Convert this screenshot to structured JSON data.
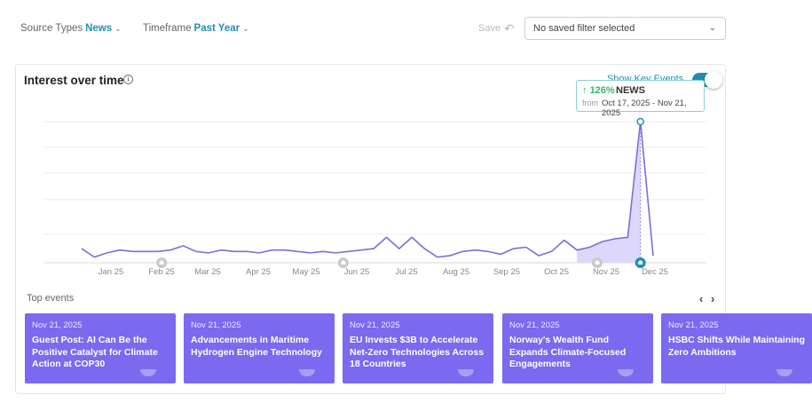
{
  "filters": {
    "source_types": {
      "label": "Source Types",
      "value": "News"
    },
    "timeframe": {
      "label": "Timeframe",
      "value": "Past Year"
    },
    "save_label": "Save",
    "saved_filter": "No saved filter selected"
  },
  "panel": {
    "title": "Interest over time",
    "key_events_label": "Show Key Events",
    "key_events_on": true
  },
  "tooltip": {
    "change": "126%",
    "source": "NEWS",
    "from_label": "from",
    "range": "Oct 17, 2025 - Nov 21, 2025"
  },
  "chart_data": {
    "type": "line",
    "title": "",
    "xlabel": "",
    "ylabel": "",
    "x_ticks": [
      "Jan 25",
      "Feb 25",
      "Mar 25",
      "Apr 25",
      "May 25",
      "Jun 25",
      "Jul 25",
      "Aug 25",
      "Sep 25",
      "Oct 25",
      "Nov 25",
      "Dec 25"
    ],
    "ylim": [
      0,
      100
    ],
    "grid": true,
    "series": [
      {
        "name": "NEWS",
        "color": "#7b6fd6",
        "values": [
          10,
          4,
          7,
          9,
          8,
          8,
          8,
          9,
          12,
          8,
          7,
          9,
          8,
          8,
          7,
          9,
          9,
          8,
          7,
          8,
          7,
          8,
          9,
          10,
          18,
          10,
          18,
          10,
          4,
          5,
          8,
          9,
          8,
          6,
          10,
          11,
          5,
          8,
          16,
          9,
          11,
          15,
          17,
          18,
          100,
          5
        ]
      }
    ],
    "highlight_range": {
      "start_index": 39,
      "end_index": 44
    },
    "key_event_markers": [
      6.3,
      20.6,
      40.6,
      44.0
    ]
  },
  "events_panel": {
    "title": "Top events",
    "prev_icon": "chevron-left-icon",
    "next_icon": "chevron-right-icon",
    "events": [
      {
        "date": "Nov 21, 2025",
        "title": "Guest Post: AI Can Be the Positive Catalyst for Climate Action at COP30"
      },
      {
        "date": "Nov 21, 2025",
        "title": "Advancements in Maritime Hydrogen Engine Technology"
      },
      {
        "date": "Nov 21, 2025",
        "title": "EU Invests $3B to Accelerate Net-Zero Technologies Across 18 Countries"
      },
      {
        "date": "Nov 21, 2025",
        "title": "Norway's Wealth Fund Expands Climate-Focused Engagements"
      },
      {
        "date": "Nov 21, 2025",
        "title": "HSBC Shifts While Maintaining Zero Ambitions"
      }
    ]
  },
  "colors": {
    "accent": "#1f8fb0",
    "event_card": "#7b69f0",
    "series": "#7b6fd6",
    "positive": "#3cb371"
  }
}
